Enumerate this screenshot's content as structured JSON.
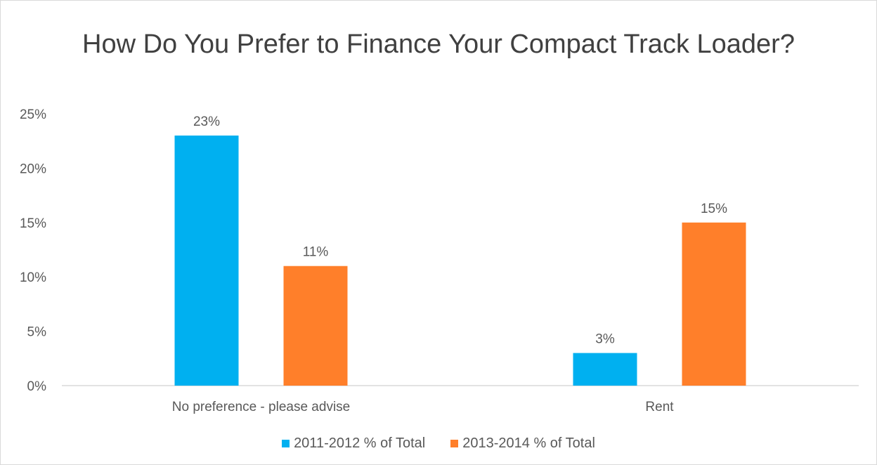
{
  "chart_data": {
    "type": "bar",
    "title": "How Do You Prefer to Finance Your Compact Track Loader?",
    "categories": [
      "No preference - please advise",
      "Rent"
    ],
    "series": [
      {
        "name": "2011-2012 % of Total",
        "values": [
          23,
          3
        ],
        "labels": [
          "23%",
          "3%"
        ],
        "color": "#00b0f0"
      },
      {
        "name": "2013-2014 % of Total",
        "values": [
          11,
          15
        ],
        "labels": [
          "11%",
          "15%"
        ],
        "color": "#ff7f2a"
      }
    ],
    "ylim": [
      0,
      25
    ],
    "yticks": [
      "0%",
      "5%",
      "10%",
      "15%",
      "20%",
      "25%"
    ],
    "ytick_values": [
      0,
      5,
      10,
      15,
      20,
      25
    ],
    "grid": false,
    "legend_position": "bottom"
  }
}
